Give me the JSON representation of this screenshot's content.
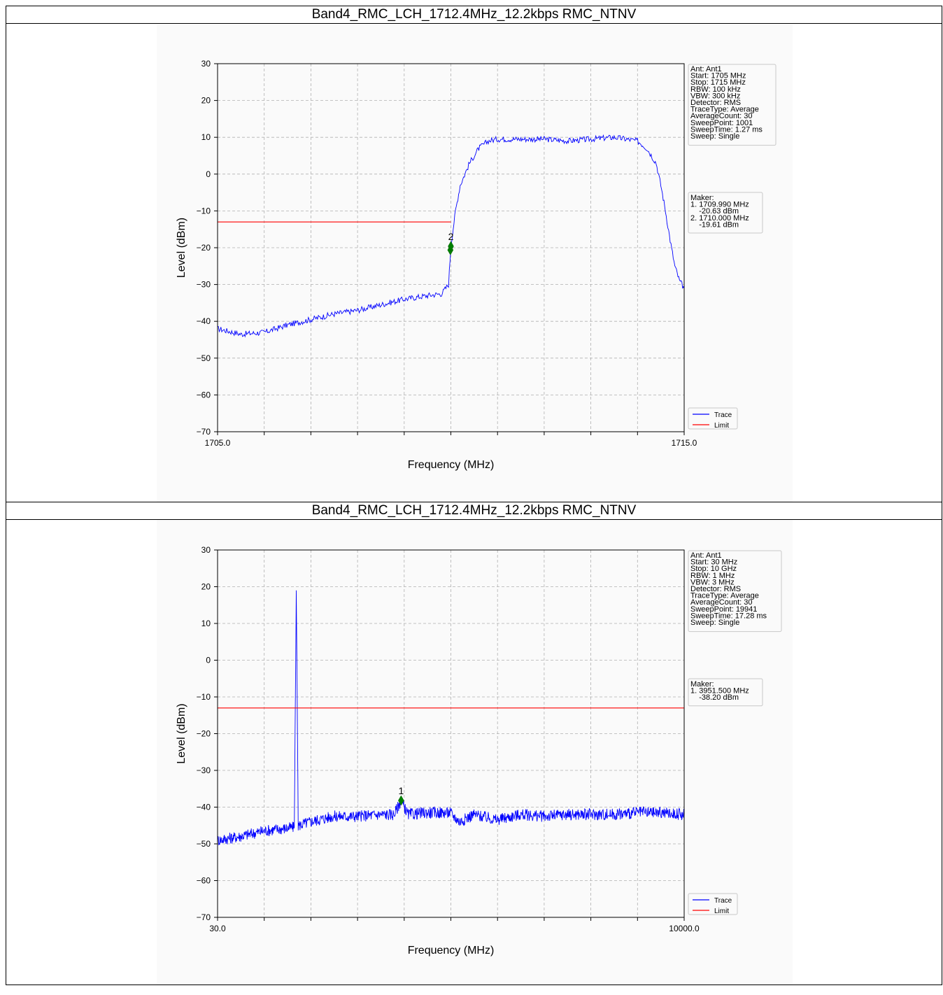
{
  "sections": [
    {
      "title": "Band4_RMC_LCH_1712.4MHz_12.2kbps RMC_NTNV",
      "chart_data": {
        "type": "line",
        "xlabel": "Frequency (MHz)",
        "ylabel": "Level (dBm)",
        "xlim": [
          1705.0,
          1715.0
        ],
        "ylim": [
          -70,
          30
        ],
        "x_tick_labels": [
          "1705.0",
          "1715.0"
        ],
        "y_ticks": [
          30,
          20,
          10,
          0,
          -10,
          -20,
          -30,
          -40,
          -50,
          -60,
          -70
        ],
        "grid": true,
        "legend": {
          "position": "right-bottom",
          "entries": [
            {
              "name": "Trace",
              "color": "#0000ff"
            },
            {
              "name": "Limit",
              "color": "#ff0000"
            }
          ]
        },
        "series": [
          {
            "name": "Trace",
            "color": "#0000ff",
            "x": [
              1705.0,
              1705.5,
              1706.0,
              1706.5,
              1707.0,
              1707.5,
              1708.0,
              1708.5,
              1709.0,
              1709.5,
              1709.8,
              1709.95,
              1710.0,
              1710.1,
              1710.2,
              1710.4,
              1710.6,
              1710.8,
              1711.0,
              1711.5,
              1712.0,
              1712.5,
              1713.0,
              1713.5,
              1714.0,
              1714.2,
              1714.4,
              1714.5,
              1714.6,
              1714.7,
              1714.8,
              1714.9,
              1715.0
            ],
            "y": [
              -42,
              -43.5,
              -43,
              -41,
              -39.5,
              -38,
              -37,
              -35.5,
              -34,
              -33,
              -32.5,
              -30,
              -19.6,
              -10,
              -3,
              3,
              7,
              9,
              9.5,
              9.5,
              9.5,
              9,
              9.5,
              10,
              9,
              7,
              3,
              -3,
              -10,
              -18,
              -25,
              -29,
              -31
            ]
          },
          {
            "name": "Limit",
            "color": "#ff0000",
            "x": [
              1705.0,
              1710.0
            ],
            "y": [
              -13,
              -13
            ]
          }
        ],
        "markers": [
          {
            "label": "1",
            "x": 1709.99,
            "y": -20.63
          },
          {
            "label": "2",
            "x": 1710.0,
            "y": -19.61
          }
        ],
        "settings_box": [
          "Ant: Ant1",
          "Start: 1705 MHz",
          "Stop: 1715 MHz",
          "RBW: 100 kHz",
          "VBW: 300 kHz",
          "Detector: RMS",
          "TraceType: Average",
          "AverageCount: 30",
          "SweepPoint: 1001",
          "SweepTime: 1.27 ms",
          "Sweep: Single"
        ],
        "maker_box": [
          "Maker:",
          "1. 1709.990 MHz",
          "    -20.63 dBm",
          "2. 1710.000 MHz",
          "    -19.61 dBm"
        ]
      }
    },
    {
      "title": "Band4_RMC_LCH_1712.4MHz_12.2kbps RMC_NTNV",
      "chart_data": {
        "type": "line",
        "xlabel": "Frequency (MHz)",
        "ylabel": "Level (dBm)",
        "xlim": [
          30.0,
          10000.0
        ],
        "ylim": [
          -70,
          30
        ],
        "x_tick_labels": [
          "30.0",
          "10000.0"
        ],
        "y_ticks": [
          30,
          20,
          10,
          0,
          -10,
          -20,
          -30,
          -40,
          -50,
          -60,
          -70
        ],
        "grid": true,
        "legend": {
          "position": "right-bottom",
          "entries": [
            {
              "name": "Trace",
              "color": "#0000ff"
            },
            {
              "name": "Limit",
              "color": "#ff0000"
            }
          ]
        },
        "series": [
          {
            "name": "Trace",
            "color": "#0000ff",
            "x": [
              30,
              500,
              1000,
              1670,
              1712,
              1754,
              2000,
              2500,
              3000,
              3500,
              3800,
              3951.5,
              4100,
              4500,
              5000,
              5200,
              5500,
              6000,
              6500,
              7000,
              7500,
              8000,
              8500,
              9000,
              9500,
              10000
            ],
            "y": [
              -49,
              -48,
              -46.5,
              -45.5,
              19,
              -45,
              -44,
              -42.5,
              -42.5,
              -42,
              -42,
              -38.2,
              -42,
              -41.5,
              -41.5,
              -44,
              -42,
              -43.5,
              -42,
              -42.5,
              -42,
              -42,
              -42,
              -41.5,
              -41.5,
              -42
            ]
          },
          {
            "name": "Limit",
            "color": "#ff0000",
            "x": [
              30,
              10000
            ],
            "y": [
              -13,
              -13
            ]
          }
        ],
        "markers": [
          {
            "label": "1",
            "x": 3951.5,
            "y": -38.2
          }
        ],
        "settings_box": [
          "Ant: Ant1",
          "Start: 30 MHz",
          "Stop: 10 GHz",
          "RBW: 1 MHz",
          "VBW: 3 MHz",
          "Detector: RMS",
          "TraceType: Average",
          "AverageCount: 30",
          "SweepPoint: 19941",
          "SweepTime: 17.28 ms",
          "Sweep: Single"
        ],
        "maker_box": [
          "Maker:",
          "1. 3951.500 MHz",
          "    -38.20 dBm"
        ]
      }
    }
  ]
}
